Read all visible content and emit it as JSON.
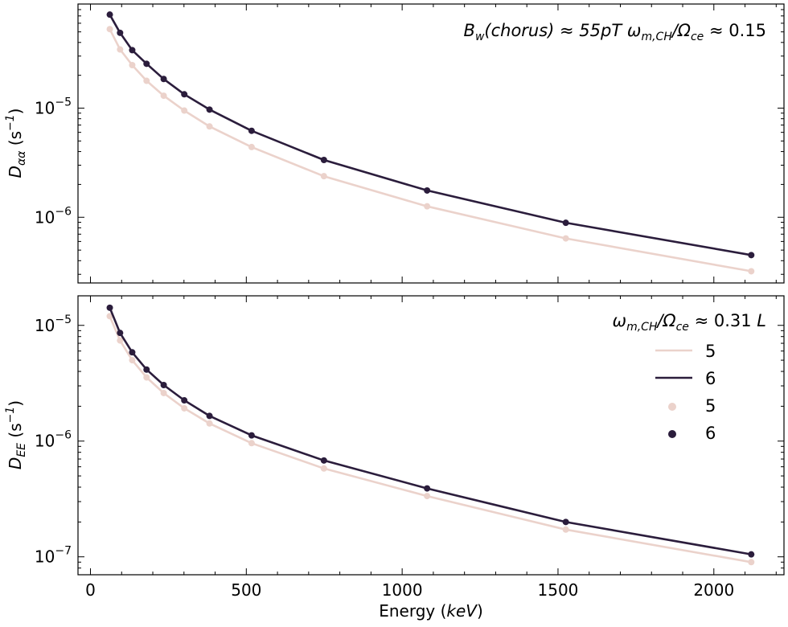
{
  "colors": {
    "L5": "#ebd2cb",
    "L6": "#2b1d3c",
    "axis": "#000000",
    "background": "#ffffff"
  },
  "chart_data": [
    {
      "type": "line",
      "panel": "top",
      "x": [
        62,
        95,
        134,
        180,
        235,
        301,
        382,
        517,
        749,
        1080,
        1525,
        2120
      ],
      "series": [
        {
          "name": "5",
          "values": [
            5.3e-05,
            3.45e-05,
            2.48e-05,
            1.78e-05,
            1.3e-05,
            9.5e-06,
            6.8e-06,
            4.4e-06,
            2.38e-06,
            1.26e-06,
            6.4e-07,
            3.2e-07
          ]
        },
        {
          "name": "6",
          "values": [
            7.2e-05,
            4.9e-05,
            3.4e-05,
            2.55e-05,
            1.85e-05,
            1.34e-05,
            9.7e-06,
            6.2e-06,
            3.35e-06,
            1.76e-06,
            8.9e-07,
            4.5e-07
          ]
        }
      ],
      "ylabel": {
        "main": "D",
        "sub": "αα",
        "unit_open": " (s",
        "unit_sup": "−1",
        "unit_close": ")"
      },
      "ylim": [
        2.5e-07,
        9e-05
      ],
      "yscale": "log",
      "yticks": [
        {
          "value": 1e-05,
          "base": "10",
          "exp": "−5"
        },
        {
          "value": 1e-06,
          "base": "10",
          "exp": "−6"
        }
      ],
      "annotation": {
        "p1": "B",
        "p1_sub": "w",
        "p2": "(chorus) ≈ 55pT ω",
        "p3_sub": "m,CH",
        "p4": "/Ω",
        "p5_sub": "ce",
        "p6": " ≈ 0.15"
      }
    },
    {
      "type": "line",
      "panel": "bottom",
      "x": [
        62,
        95,
        134,
        180,
        235,
        301,
        382,
        517,
        749,
        1080,
        1525,
        2120
      ],
      "series": [
        {
          "name": "5",
          "values": [
            1.2e-05,
            7.4e-06,
            5e-06,
            3.55e-06,
            2.6e-06,
            1.92e-06,
            1.42e-06,
            9.6e-07,
            5.8e-07,
            3.35e-07,
            1.72e-07,
            9e-08
          ]
        },
        {
          "name": "6",
          "values": [
            1.42e-05,
            8.6e-06,
            5.85e-06,
            4.15e-06,
            3.05e-06,
            2.25e-06,
            1.65e-06,
            1.12e-06,
            6.8e-07,
            3.9e-07,
            2e-07,
            1.05e-07
          ]
        }
      ],
      "ylabel": {
        "main": "D",
        "sub": "EE",
        "unit_open": " (s",
        "unit_sup": "−1",
        "unit_close": ")"
      },
      "ylim": [
        7e-08,
        1.8e-05
      ],
      "yscale": "log",
      "yticks": [
        {
          "value": 1e-05,
          "base": "10",
          "exp": "−5"
        },
        {
          "value": 1e-06,
          "base": "10",
          "exp": "−6"
        },
        {
          "value": 1e-07,
          "base": "10",
          "exp": "−7"
        }
      ],
      "xlabel": {
        "main": "Energy (",
        "unit": "keV",
        "close": ")"
      },
      "xlim": [
        -40,
        2225
      ],
      "xticks": [
        0,
        500,
        1000,
        1500,
        2000
      ],
      "legend": {
        "title": {
          "p1": "ω",
          "p1_sub": "m,CH",
          "p2": "/Ω",
          "p2_sub": "ce",
          "p3": " ≈ 0.31 ",
          "p4": "L"
        },
        "placement": "top-right",
        "entries": [
          {
            "kind": "line",
            "label": "5",
            "color": "#ebd2cb"
          },
          {
            "kind": "line",
            "label": "6",
            "color": "#2b1d3c"
          },
          {
            "kind": "marker",
            "label": "5",
            "color": "#ebd2cb"
          },
          {
            "kind": "marker",
            "label": "6",
            "color": "#2b1d3c"
          }
        ]
      }
    }
  ]
}
